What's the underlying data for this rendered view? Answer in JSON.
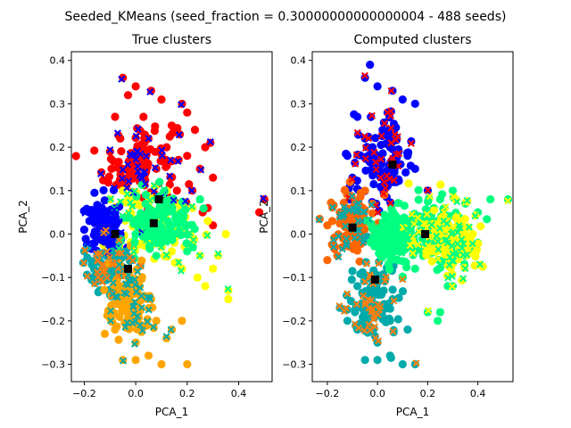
{
  "suptitle": "Seeded_KMeans (seed_fraction = 0.30000000000000004 - 488 seeds)",
  "chart_data": [
    {
      "type": "scatter",
      "title": "True clusters",
      "xlabel": "PCA_1",
      "ylabel": "PCA_2",
      "xlim": [
        -0.25,
        0.53
      ],
      "ylim": [
        -0.34,
        0.42
      ],
      "xticks": [
        -0.2,
        0.0,
        0.2,
        0.4
      ],
      "xtick_labels": [
        "−0.2",
        "0.0",
        "0.2",
        "0.4"
      ],
      "yticks": [
        -0.3,
        -0.2,
        -0.1,
        0.0,
        0.1,
        0.2,
        0.3,
        0.4
      ],
      "ytick_labels": [
        "−0.3",
        "−0.2",
        "−0.1",
        "0.0",
        "0.1",
        "0.2",
        "0.3",
        "0.4"
      ],
      "grid": false,
      "series": [
        {
          "color": "#ff0000",
          "marker_color": "#0000ff",
          "center": [
            0.02,
            0.16
          ],
          "spread": [
            0.12,
            0.09
          ],
          "values": [
            [
              -0.05,
              0.36
            ],
            [
              -0.03,
              0.32
            ],
            [
              0.0,
              0.34
            ],
            [
              0.06,
              0.33
            ],
            [
              0.1,
              0.31
            ],
            [
              0.2,
              0.28
            ],
            [
              0.18,
              0.3
            ],
            [
              0.23,
              0.24
            ],
            [
              0.27,
              0.2
            ],
            [
              0.29,
              0.21
            ],
            [
              0.3,
              0.13
            ],
            [
              0.16,
              0.1
            ],
            [
              0.08,
              0.15
            ],
            [
              0.02,
              0.2
            ],
            [
              -0.06,
              0.22
            ],
            [
              -0.1,
              0.19
            ],
            [
              0.12,
              0.2
            ],
            [
              0.2,
              0.18
            ],
            [
              0.25,
              0.15
            ],
            [
              0.28,
              0.06
            ],
            [
              0.03,
              0.27
            ],
            [
              0.05,
              0.22
            ],
            [
              -0.02,
              0.15
            ],
            [
              0.14,
              0.25
            ],
            [
              0.22,
              0.1
            ],
            [
              0.3,
              0.02
            ],
            [
              0.48,
              0.05
            ],
            [
              0.5,
              0.08
            ],
            [
              -0.08,
              0.27
            ],
            [
              0.26,
              0.05
            ]
          ]
        },
        {
          "color": "#ffff00",
          "marker_color": "#00ff80",
          "center": [
            0.06,
            0.02
          ],
          "spread": [
            0.12,
            0.07
          ],
          "values": [
            [
              0.1,
              0.05
            ],
            [
              0.15,
              -0.02
            ],
            [
              0.2,
              0.0
            ],
            [
              0.25,
              -0.05
            ],
            [
              0.24,
              -0.1
            ],
            [
              0.3,
              -0.08
            ],
            [
              0.36,
              -0.13
            ],
            [
              0.36,
              -0.15
            ],
            [
              0.27,
              -0.12
            ],
            [
              0.18,
              -0.08
            ],
            [
              0.05,
              0.05
            ],
            [
              -0.05,
              0.1
            ],
            [
              -0.1,
              0.08
            ],
            [
              0.0,
              0.08
            ],
            [
              0.12,
              0.1
            ],
            [
              0.22,
              0.06
            ],
            [
              0.28,
              0.03
            ],
            [
              0.35,
              0.0
            ],
            [
              0.32,
              -0.05
            ],
            [
              0.14,
              -0.04
            ]
          ]
        },
        {
          "color": "#00ff80",
          "marker_color": "#00ff80",
          "center": [
            0.1,
            0.03
          ],
          "spread": [
            0.1,
            0.05
          ],
          "values": [
            [
              0.05,
              0.05
            ],
            [
              0.12,
              0.07
            ],
            [
              0.18,
              0.05
            ],
            [
              0.22,
              0.02
            ],
            [
              0.15,
              0.0
            ],
            [
              0.1,
              0.0
            ],
            [
              0.25,
              0.08
            ],
            [
              0.08,
              -0.05
            ],
            [
              0.2,
              -0.04
            ],
            [
              0.0,
              0.0
            ]
          ]
        },
        {
          "color": "#0000ff",
          "marker_color": "#0000ff",
          "center": [
            -0.12,
            0.02
          ],
          "spread": [
            0.06,
            0.05
          ],
          "values": [
            [
              -0.15,
              0.04
            ],
            [
              -0.12,
              0.03
            ],
            [
              -0.1,
              0.0
            ],
            [
              -0.14,
              0.0
            ],
            [
              -0.18,
              0.03
            ],
            [
              -0.08,
              0.05
            ],
            [
              -0.16,
              -0.02
            ],
            [
              -0.2,
              0.01
            ]
          ]
        },
        {
          "color": "#00aaaa",
          "marker_color": "#ff7f0e",
          "center": [
            -0.1,
            -0.08
          ],
          "spread": [
            0.07,
            0.05
          ],
          "values": [
            [
              -0.15,
              -0.05
            ],
            [
              -0.12,
              -0.09
            ],
            [
              -0.08,
              -0.1
            ],
            [
              -0.2,
              -0.04
            ],
            [
              -0.06,
              -0.12
            ],
            [
              -0.1,
              -0.14
            ]
          ]
        },
        {
          "color": "#ffa500",
          "marker_color": "#00aaaa",
          "center": [
            -0.02,
            -0.16
          ],
          "spread": [
            0.08,
            0.07
          ],
          "values": [
            [
              0.0,
              -0.25
            ],
            [
              0.05,
              -0.28
            ],
            [
              0.1,
              -0.3
            ],
            [
              -0.05,
              -0.29
            ],
            [
              0.0,
              -0.29
            ],
            [
              0.2,
              -0.3
            ],
            [
              0.14,
              -0.22
            ],
            [
              0.18,
              -0.2
            ],
            [
              -0.08,
              -0.22
            ],
            [
              -0.1,
              -0.18
            ],
            [
              -0.12,
              -0.23
            ],
            [
              0.08,
              -0.2
            ],
            [
              -0.03,
              -0.2
            ],
            [
              0.06,
              -0.15
            ],
            [
              -0.06,
              -0.14
            ],
            [
              0.12,
              -0.24
            ]
          ]
        }
      ],
      "centroids": [
        [
          -0.08,
          0.0
        ],
        [
          -0.03,
          -0.08
        ],
        [
          0.07,
          0.025
        ],
        [
          0.09,
          0.08
        ]
      ]
    },
    {
      "type": "scatter",
      "title": "Computed clusters",
      "xlabel": "PCA_1",
      "ylabel": "PCA_2",
      "xlim": [
        -0.26,
        0.54
      ],
      "ylim": [
        -0.34,
        0.42
      ],
      "xticks": [
        -0.2,
        0.0,
        0.2,
        0.4
      ],
      "xtick_labels": [
        "−0.2",
        "0.0",
        "0.2",
        "0.4"
      ],
      "yticks": [
        -0.3,
        -0.2,
        -0.1,
        0.0,
        0.1,
        0.2,
        0.3,
        0.4
      ],
      "ytick_labels": [
        "−0.3",
        "−0.2",
        "−0.1",
        "0.0",
        "0.1",
        "0.2",
        "0.3",
        "0.4"
      ],
      "grid": false,
      "series": [
        {
          "color": "#0000ff",
          "marker_color": "#ff0000",
          "center": [
            0.02,
            0.17
          ],
          "spread": [
            0.1,
            0.08
          ],
          "values": [
            [
              -0.05,
              0.36
            ],
            [
              -0.03,
              0.39
            ],
            [
              0.0,
              0.34
            ],
            [
              0.06,
              0.33
            ],
            [
              0.1,
              0.31
            ],
            [
              0.15,
              0.3
            ],
            [
              0.04,
              0.28
            ],
            [
              -0.08,
              0.27
            ],
            [
              0.02,
              0.24
            ],
            [
              -0.05,
              0.22
            ],
            [
              -0.02,
              0.2
            ],
            [
              0.05,
              0.2
            ],
            [
              0.08,
              0.16
            ],
            [
              0.12,
              0.18
            ],
            [
              0.15,
              0.15
            ],
            [
              0.2,
              0.1
            ],
            [
              -0.12,
              0.18
            ],
            [
              0.0,
              0.15
            ],
            [
              -0.1,
              0.13
            ],
            [
              0.06,
              0.12
            ]
          ]
        },
        {
          "color": "#ff6600",
          "marker_color": "#00aaaa",
          "center": [
            -0.1,
            0.03
          ],
          "spread": [
            0.07,
            0.06
          ],
          "values": [
            [
              -0.15,
              0.05
            ],
            [
              -0.12,
              0.03
            ],
            [
              -0.1,
              0.0
            ],
            [
              -0.14,
              -0.03
            ],
            [
              -0.18,
              0.03
            ],
            [
              -0.08,
              0.06
            ],
            [
              -0.16,
              -0.05
            ],
            [
              -0.2,
              0.02
            ],
            [
              -0.05,
              0.1
            ],
            [
              -0.02,
              0.07
            ],
            [
              -0.2,
              -0.06
            ],
            [
              -0.11,
              0.12
            ]
          ]
        },
        {
          "color": "#00ff80",
          "marker_color": "#ffff00",
          "center": [
            0.2,
            0.0
          ],
          "spread": [
            0.12,
            0.07
          ],
          "values": [
            [
              0.2,
              0.05
            ],
            [
              0.25,
              0.08
            ],
            [
              0.3,
              0.1
            ],
            [
              0.35,
              0.07
            ],
            [
              0.4,
              0.05
            ],
            [
              0.45,
              0.08
            ],
            [
              0.52,
              0.08
            ],
            [
              0.4,
              -0.02
            ],
            [
              0.35,
              -0.05
            ],
            [
              0.3,
              -0.12
            ],
            [
              0.25,
              -0.18
            ],
            [
              0.24,
              -0.2
            ],
            [
              0.2,
              -0.18
            ],
            [
              0.28,
              -0.12
            ],
            [
              0.15,
              -0.08
            ],
            [
              0.1,
              0.02
            ]
          ]
        },
        {
          "color": "#00aaaa",
          "marker_color": "#ff7f0e",
          "center": [
            -0.02,
            -0.15
          ],
          "spread": [
            0.08,
            0.08
          ],
          "values": [
            [
              0.0,
              -0.25
            ],
            [
              0.05,
              -0.28
            ],
            [
              0.1,
              -0.3
            ],
            [
              0.15,
              -0.3
            ],
            [
              -0.05,
              -0.29
            ],
            [
              0.0,
              -0.29
            ],
            [
              -0.08,
              -0.22
            ],
            [
              -0.12,
              -0.2
            ],
            [
              -0.03,
              -0.16
            ],
            [
              0.06,
              -0.15
            ],
            [
              0.05,
              -0.2
            ],
            [
              0.12,
              -0.22
            ],
            [
              -0.15,
              -0.17
            ],
            [
              0.02,
              -0.1
            ],
            [
              -0.08,
              -0.12
            ],
            [
              0.1,
              -0.1
            ]
          ]
        },
        {
          "color": "#ffff00",
          "marker_color": "#00ff80",
          "center": [
            0.3,
            -0.02
          ],
          "spread": [
            0.08,
            0.06
          ],
          "values": [
            [
              0.28,
              -0.01
            ],
            [
              0.32,
              0.02
            ],
            [
              0.35,
              -0.04
            ],
            [
              0.3,
              -0.06
            ],
            [
              0.38,
              0.0
            ],
            [
              0.26,
              0.04
            ]
          ]
        },
        {
          "color": "#00ff80",
          "marker_color": "#00ff80",
          "center": [
            0.05,
            -0.01
          ],
          "spread": [
            0.06,
            0.05
          ],
          "values": [
            [
              0.05,
              0.0
            ],
            [
              0.08,
              0.03
            ],
            [
              0.02,
              -0.03
            ],
            [
              0.1,
              -0.04
            ]
          ]
        }
      ],
      "centroids": [
        [
          -0.1,
          0.015
        ],
        [
          -0.01,
          -0.105
        ],
        [
          0.06,
          0.16
        ],
        [
          0.19,
          0.0
        ]
      ]
    }
  ]
}
